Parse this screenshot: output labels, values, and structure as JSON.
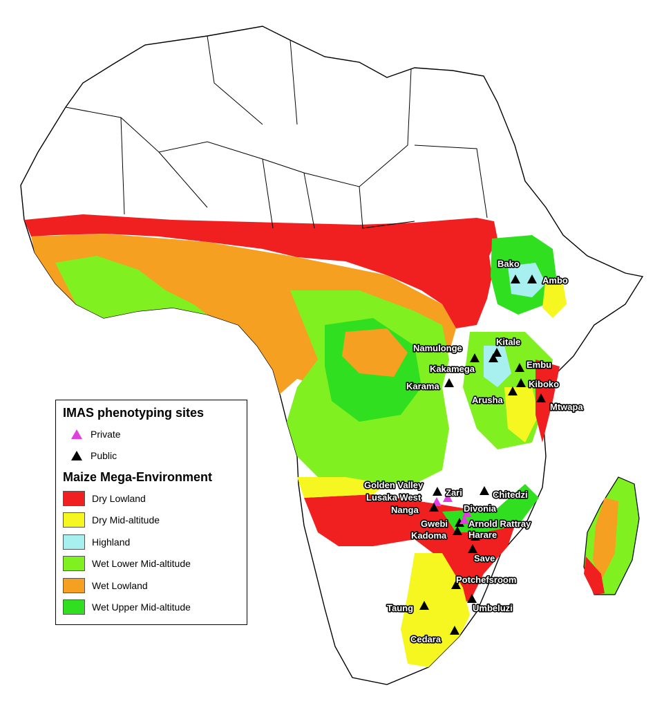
{
  "legend": {
    "sites_title": "IMAS phenotyping sites",
    "site_types": [
      {
        "label": "Private",
        "color": "#e040e0"
      },
      {
        "label": "Public",
        "color": "#000000"
      }
    ],
    "env_title": "Maize Mega-Environment",
    "environments": [
      {
        "label": "Dry Lowland",
        "color": "#f02020"
      },
      {
        "label": "Dry Mid-altitude",
        "color": "#f6f620"
      },
      {
        "label": "Highland",
        "color": "#a8f0f0"
      },
      {
        "label": "Wet Lower Mid-altitude",
        "color": "#80f020"
      },
      {
        "label": "Wet Lowland",
        "color": "#f5a020"
      },
      {
        "label": "Wet Upper Mid-altitude",
        "color": "#30e020"
      }
    ]
  },
  "sites": [
    {
      "name": "Bako",
      "type": "Public"
    },
    {
      "name": "Ambo",
      "type": "Public"
    },
    {
      "name": "Namulonge",
      "type": "Public"
    },
    {
      "name": "Kitale",
      "type": "Public"
    },
    {
      "name": "Kakamega",
      "type": "Public"
    },
    {
      "name": "Embu",
      "type": "Public"
    },
    {
      "name": "Karama",
      "type": "Public"
    },
    {
      "name": "Kiboko",
      "type": "Public"
    },
    {
      "name": "Arusha",
      "type": "Public"
    },
    {
      "name": "Mtwapa",
      "type": "Public"
    },
    {
      "name": "Golden Valley",
      "type": "Public"
    },
    {
      "name": "Zari",
      "type": "Private"
    },
    {
      "name": "Lusaka West",
      "type": "Private"
    },
    {
      "name": "Chitedzi",
      "type": "Public"
    },
    {
      "name": "Nanga",
      "type": "Public"
    },
    {
      "name": "Divonia",
      "type": "Private"
    },
    {
      "name": "Gwebi",
      "type": "Public"
    },
    {
      "name": "Arnold Rattray",
      "type": "Private"
    },
    {
      "name": "Kadoma",
      "type": "Public"
    },
    {
      "name": "Harare",
      "type": "Public"
    },
    {
      "name": "Save",
      "type": "Public"
    },
    {
      "name": "Potchefsroom",
      "type": "Public"
    },
    {
      "name": "Taung",
      "type": "Public"
    },
    {
      "name": "Umbeluzi",
      "type": "Public"
    },
    {
      "name": "Cedara",
      "type": "Public"
    }
  ]
}
